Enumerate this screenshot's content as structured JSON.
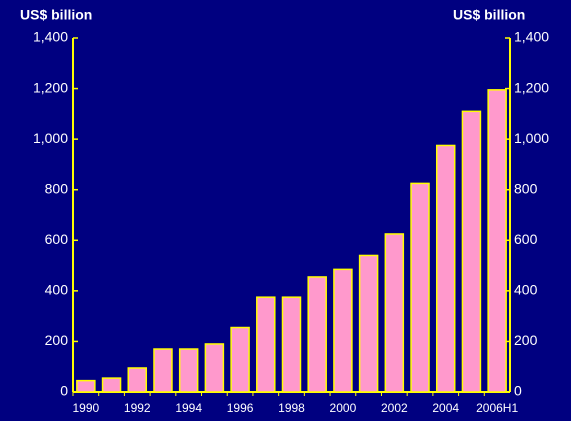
{
  "chart_data": {
    "type": "bar",
    "y_axis_label": "US$ billion",
    "y2_axis_label": "US$ billion",
    "categories": [
      "1990",
      null,
      "1992",
      null,
      "1994",
      null,
      "1996",
      null,
      "1998",
      null,
      "2000",
      null,
      "2002",
      null,
      "2004",
      null,
      "2006H1"
    ],
    "values": [
      45,
      55,
      95,
      170,
      170,
      190,
      255,
      375,
      375,
      455,
      485,
      540,
      625,
      825,
      975,
      1110,
      1195
    ],
    "color": "#ff99cc",
    "edge_color": "#ffff00",
    "ylim": [
      0,
      1400
    ],
    "yticks": [
      0,
      200,
      400,
      600,
      800,
      {
        "value": 1000,
        "label": "1,000"
      },
      {
        "value": 1200,
        "label": "1,200"
      },
      {
        "value": 1400,
        "label": "1,400"
      }
    ],
    "y2lim": [
      0,
      1400
    ],
    "y2ticks": [
      0,
      200,
      400,
      600,
      800,
      {
        "value": 1000,
        "label": "1,000"
      },
      {
        "value": 1200,
        "label": "1,200"
      },
      {
        "value": 1400,
        "label": "1,400"
      }
    ],
    "grid": false
  }
}
